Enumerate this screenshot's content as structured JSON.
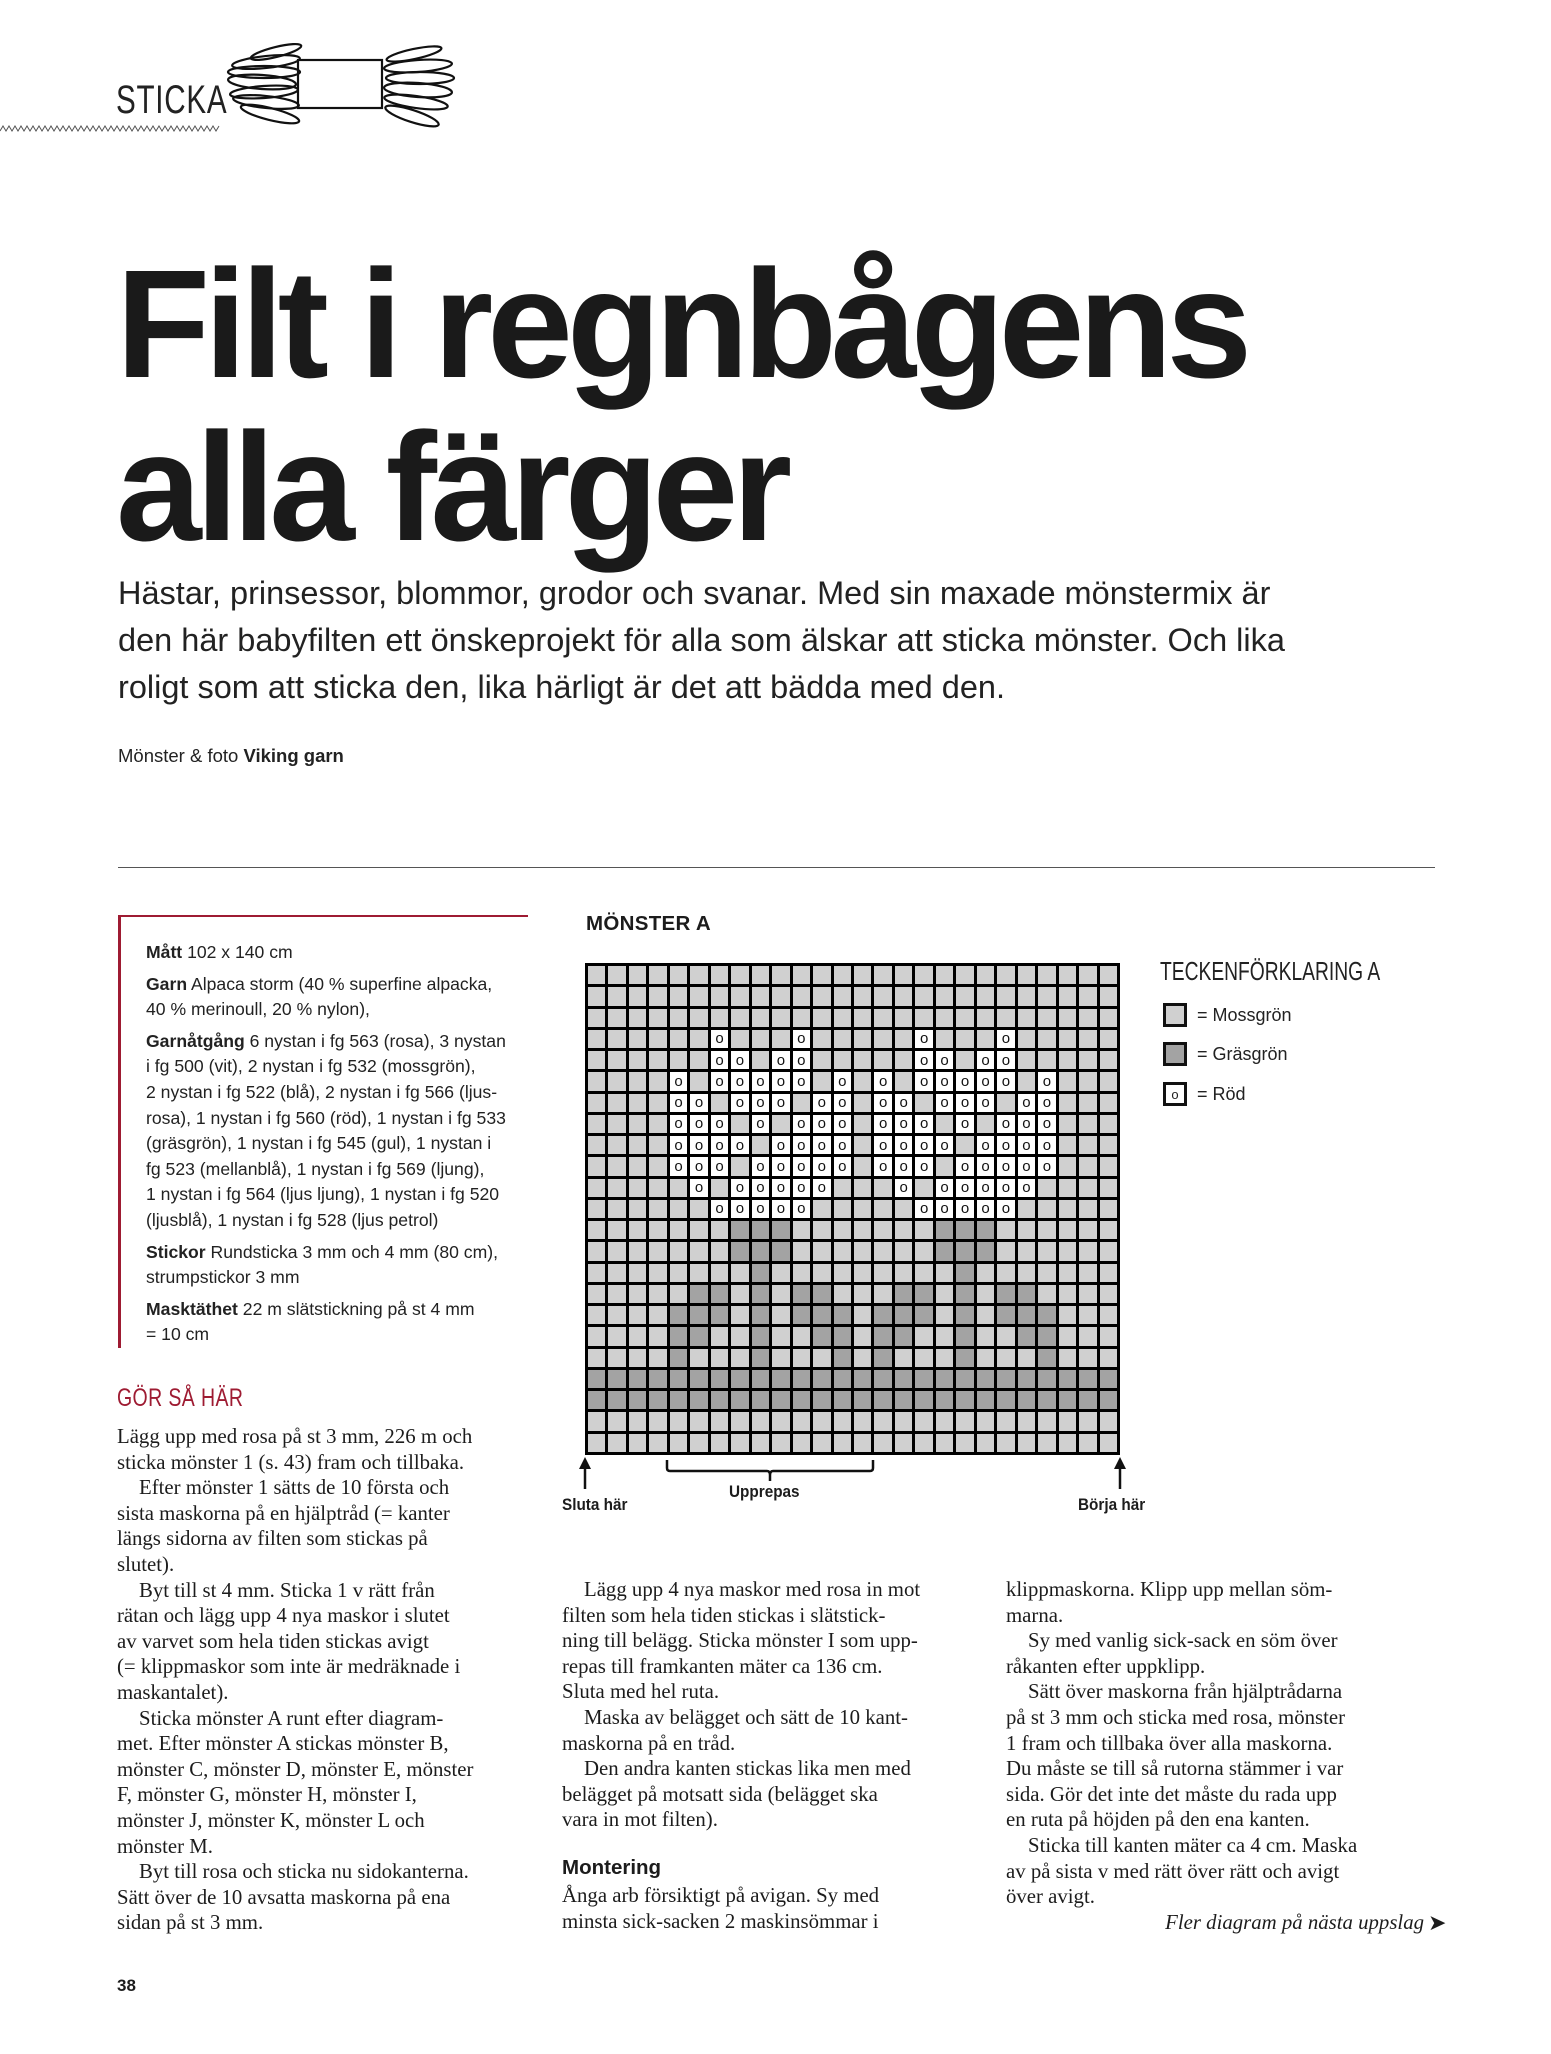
{
  "header": {
    "section_label": "STICKA",
    "skein_icon": "yarn-skein-icon"
  },
  "title": {
    "line1": "Filt i regnbågens",
    "line2": "alla färger"
  },
  "intro": {
    "lines": [
      "Hästar, prinsessor, blommor, grodor och svanar. Med sin maxade mönstermix är",
      "den här babyfilten ett önskeprojekt för alla som älskar att sticka mönster. Och lika",
      "roligt som att sticka den, lika härligt är det att bädda med den."
    ]
  },
  "credit": {
    "prefix": "Mönster & foto",
    "name": "Viking garn"
  },
  "facts": [
    {
      "label": "Mått",
      "lines": [
        "102 x 140 cm"
      ]
    },
    {
      "label": "Garn",
      "lines": [
        "Alpaca storm (40 % superfine alpacka,",
        "40 % merinoull, 20 % nylon),"
      ]
    },
    {
      "label": "Garnåtgång",
      "lines": [
        "6 nystan i fg 563 (rosa), 3 nystan",
        "i fg 500 (vit), 2 nystan i fg 532 (mossgrön),",
        "2 nystan i fg 522 (blå), 2 nystan i fg 566 (ljus-",
        "rosa), 1 nystan i fg 560 (röd), 1 nystan i fg 533",
        "(gräsgrön), 1 nystan i fg 545 (gul), 1 nystan i",
        "fg 523 (mellanblå), 1 nystan i fg 569 (ljung),",
        "1 nystan i fg 564 (ljus ljung), 1 nystan i fg 520",
        "(ljusblå), 1 nystan i fg 528 (ljus petrol)"
      ]
    },
    {
      "label": "Stickor",
      "lines": [
        "Rundsticka 3 mm och 4 mm (80 cm),",
        "strumpstickor 3 mm"
      ]
    },
    {
      "label": "Masktäthet",
      "lines": [
        "22 m slätstickning på st 4 mm",
        "= 10 cm"
      ]
    }
  ],
  "instructions": {
    "heading": "GÖR SÅ HÄR",
    "left": [
      {
        "indent": false,
        "lines": [
          "Lägg upp med rosa på st 3 mm, 226 m och",
          "sticka mönster 1 (s. 43) fram och tillbaka."
        ]
      },
      {
        "indent": true,
        "lines": [
          "Efter mönster 1 sätts de 10 första och",
          "sista maskorna på en hjälptråd (= kanter",
          "längs sidorna av filten som stickas på",
          "slutet)."
        ]
      },
      {
        "indent": true,
        "lines": [
          "Byt till st 4 mm. Sticka 1 v rätt från",
          "rätan och lägg upp 4 nya maskor i slutet",
          "av varvet som hela tiden stickas avigt",
          "(= klippmaskor som inte är medräknade i",
          "maskantalet)."
        ]
      },
      {
        "indent": true,
        "lines": [
          "Sticka mönster A runt efter diagram-",
          "met. Efter mönster A stickas mönster B,",
          "mönster C, mönster D, mönster E, mönster",
          "F, mönster G, mönster H, mönster I,",
          "mönster J, mönster K, mönster L och",
          "mönster M."
        ]
      },
      {
        "indent": true,
        "lines": [
          "Byt till rosa och sticka nu sidokanterna.",
          "Sätt över de 10 avsatta maskorna på ena",
          "sidan på st 3 mm."
        ]
      }
    ],
    "middle": [
      {
        "indent": true,
        "lines": [
          "Lägg upp 4 nya maskor med rosa in mot",
          "filten som hela tiden stickas i slätstick-",
          "ning till belägg. Sticka mönster I som upp-",
          "repas till framkanten mäter ca 136 cm.",
          "Sluta med hel ruta."
        ]
      },
      {
        "indent": true,
        "lines": [
          "Maska av belägget och sätt de 10 kant-",
          "maskorna på en tråd."
        ]
      },
      {
        "indent": true,
        "lines": [
          "Den andra kanten stickas lika men med",
          "belägget på motsatt sida (belägget ska",
          "vara in mot filten)."
        ]
      }
    ],
    "assembly_heading": "Montering",
    "assembly": [
      {
        "indent": false,
        "lines": [
          "Ånga arb försiktigt på avigan. Sy med",
          "minsta sick-sacken 2 maskinsömmar i"
        ]
      }
    ],
    "right": [
      {
        "indent": false,
        "lines": [
          "klippmaskorna. Klipp upp mellan söm-",
          "marna."
        ]
      },
      {
        "indent": true,
        "lines": [
          "Sy med vanlig sick-sack en söm över",
          "råkanten efter uppklipp."
        ]
      },
      {
        "indent": true,
        "lines": [
          "Sätt över maskorna från hjälptrådarna",
          "på st 3 mm och sticka med rosa, mönster",
          "1 fram och tillbaka över alla maskorna.",
          "Du måste se till så rutorna stämmer i var",
          "sida. Gör det inte det måste du rada upp",
          "en ruta på höjden på den ena kanten."
        ]
      },
      {
        "indent": true,
        "lines": [
          "Sticka till kanten mäter ca 4 cm. Maska",
          "av på sista v med rätt över rätt och avigt",
          "över avigt."
        ]
      }
    ],
    "more_note": "Fler diagram på nästa uppslag",
    "more_arrow": "➤"
  },
  "page_number": "38",
  "colors": {
    "accent": "#9e1b32",
    "mossgron": "#d0d0d0",
    "grasgron": "#a3a3a3",
    "rod": "#ffffff",
    "grid_lines": "#000000"
  },
  "chart_data": {
    "type": "table",
    "title": "MÖNSTER A",
    "columns": 26,
    "rows": 23,
    "legend_title": "TECKENFÖRKLARING A",
    "legend": [
      {
        "key": "L",
        "symbol": "",
        "label": "= Mossgrön"
      },
      {
        "key": "G",
        "symbol": "",
        "label": "= Gräsgrön"
      },
      {
        "key": "R",
        "symbol": "o",
        "label": "= Röd"
      }
    ],
    "grid": [
      "LLLLLLLLLLLLLLLLLLLLLLLLLL",
      "LLLLLLLLLLLLLLLLLLLLLLLLLL",
      "LLLLLLLLLLLLLLLLLLLLLLLLLL",
      "LLLLLLRLLLRLLLLLRLLLRLLLLL",
      "LLLLLLRRLRRLLLLLRRLRRLLLLL",
      "LLLLRLRRRRRLRLRLRRRRRLRLLL",
      "LLLLRRLRRRLRRLRRLRRRLRRLLL",
      "LLLLRRRLRLRRRLRRRLRLRRRLLL",
      "LLLLRRRRLRRRRLRRRRLRRRRLLL",
      "LLLLRRRLRRRRRLRRRLRRRRRLLL",
      "LLLLLRLRRRRRLLLRLRRRRRLLLL",
      "LLLLLLRRRRRLLLLLRRRRRLLLLL",
      "LLLLLLLGGGLLLLLLLGGGLLLLLL",
      "LLLLLLLGGGLLLLLLLGGGLLLLLL",
      "LLLLLLLLGLLLLLLLLLGLLLLLLL",
      "LLLLLGGLGLGGLLLGGLGLGGLLLL",
      "LLLLGGGLGLGGGLGGGLGLGGGLLL",
      "LLLLGGLLGLLGGLGGLLGLLGGLLL",
      "LLLLGLLLGLLLGLGLLLGLLLGLLL",
      "GGGGGGGGGGGGGGGGGGGGGGGGGG",
      "GGGGGGGGGGGGGGGGGGGGGGGGGG",
      "LLLLLLLLLLLLLLLLLLLLLLLLLL",
      "LLLLLLLLLLLLLLLLLLLLLLLLLL"
    ],
    "repeat_columns_from_left": [
      5,
      14
    ],
    "labels": {
      "end": "Sluta här",
      "repeat": "Upprepas",
      "start": "Börja här"
    }
  }
}
